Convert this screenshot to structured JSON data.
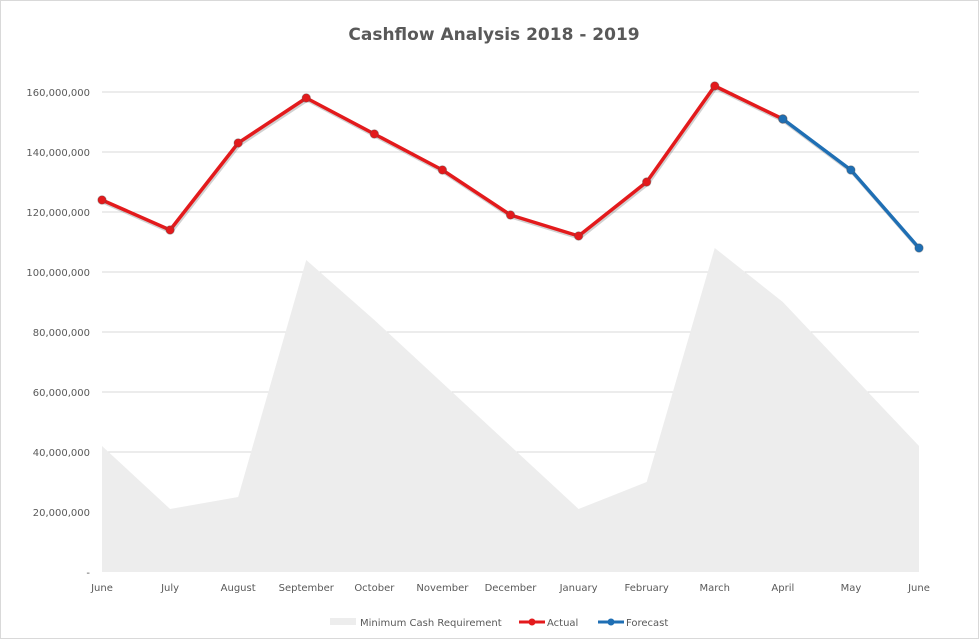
{
  "chart_data": {
    "type": "line",
    "title": "Cashflow Analysis 2018 - 2019",
    "xlabel": "",
    "ylabel": "",
    "categories": [
      "June",
      "July",
      "August",
      "September",
      "October",
      "November",
      "December",
      "January",
      "February",
      "March",
      "April",
      "May",
      "June"
    ],
    "ylim": [
      0,
      170000000
    ],
    "y_ticks": [
      0,
      20000000,
      40000000,
      60000000,
      80000000,
      100000000,
      120000000,
      140000000,
      160000000
    ],
    "y_tick_labels": [
      "-",
      "20,000,000",
      "40,000,000",
      "60,000,000",
      "80,000,000",
      "100,000,000",
      "120,000,000",
      "140,000,000",
      "160,000,000"
    ],
    "grid": true,
    "legend_position": "bottom",
    "series": [
      {
        "name": "Minimum Cash Requirement",
        "type": "area",
        "color": "#ededed",
        "values": [
          42000000,
          21000000,
          25000000,
          104000000,
          84000000,
          63000000,
          42000000,
          21000000,
          30000000,
          108000000,
          90000000,
          66000000,
          42000000
        ]
      },
      {
        "name": "Actual",
        "type": "line",
        "color": "#e31a1c",
        "values": [
          124000000,
          114000000,
          143000000,
          158000000,
          146000000,
          134000000,
          119000000,
          112000000,
          130000000,
          162000000,
          151000000,
          null,
          null
        ]
      },
      {
        "name": "Forecast",
        "type": "line",
        "color": "#1f6fb4",
        "values": [
          null,
          null,
          null,
          null,
          null,
          null,
          null,
          null,
          null,
          null,
          151000000,
          134000000,
          108000000
        ]
      }
    ]
  }
}
